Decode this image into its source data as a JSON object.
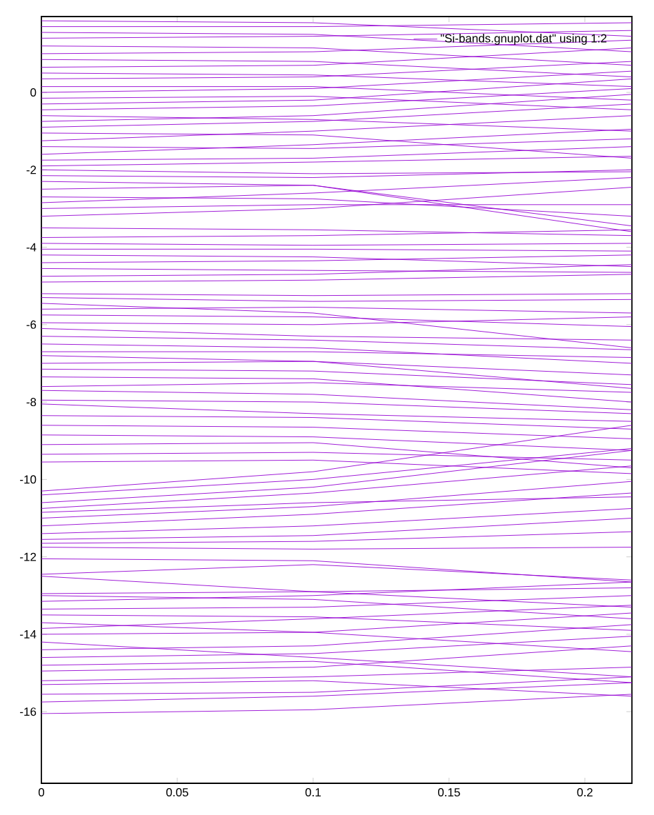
{
  "chart_data": {
    "type": "line",
    "xlim": [
      0,
      0.2173
    ],
    "ylim": [
      -17.85,
      1.96
    ],
    "xticks": [
      0,
      0.05,
      0.1,
      0.15,
      0.2
    ],
    "yticks": [
      -16,
      -14,
      -12,
      -10,
      -8,
      -6,
      -4,
      -2,
      0
    ],
    "legend": "top right",
    "line_style": "solid",
    "marker": "none",
    "series": [
      {
        "name": "\"Si-bands.gnuplot.dat\" using 1:2",
        "color": "#9400d3",
        "x": [
          0,
          0.1,
          0.2173,
          null,
          0,
          0.1,
          0.2173,
          null,
          0,
          0.1,
          0.2173,
          null,
          0,
          0.1,
          0.2173,
          null,
          0,
          0.1,
          0.2173,
          null,
          0,
          0.1,
          0.2173,
          null,
          0,
          0.1,
          0.2173,
          null,
          0,
          0.1,
          0.2173,
          null,
          0,
          0.1,
          0.2173,
          null,
          0,
          0.1,
          0.2173,
          null,
          0,
          0.1,
          0.2173,
          null,
          0,
          0.1,
          0.2173,
          null,
          0,
          0.1,
          0.2173,
          null,
          0,
          0.1,
          0.2173,
          null,
          0,
          0.1,
          0.2173,
          null,
          0,
          0.1,
          0.2173,
          null,
          0,
          0.1,
          0.2173,
          null,
          0,
          0.1,
          0.2173,
          null,
          0,
          0.1,
          0.2173,
          null,
          0,
          0.1,
          0.2173,
          null,
          0,
          0.1,
          0.2173,
          null,
          0,
          0.1,
          0.2173,
          null,
          0,
          0.1,
          0.2173,
          null,
          0,
          0.1,
          0.2173,
          null,
          0,
          0.1,
          0.2173,
          null,
          0,
          0.1,
          0.2173,
          null,
          0,
          0.1,
          0.2173,
          null,
          0,
          0.1,
          0.2173,
          null,
          0,
          0.1,
          0.2173,
          null,
          0,
          0.1,
          0.2173,
          null,
          0,
          0.1,
          0.2173,
          null,
          0,
          0.1,
          0.2173,
          null,
          0,
          0.1,
          0.2173,
          null,
          0,
          0.1,
          0.2173,
          null,
          0,
          0.1,
          0.2173,
          null,
          0,
          0.1,
          0.2173,
          null,
          0,
          0.1,
          0.2173,
          null,
          0,
          0.1,
          0.2173,
          null,
          0,
          0.1,
          0.2173,
          null,
          0,
          0.1,
          0.2173,
          null,
          0,
          0.1,
          0.2173,
          null,
          0,
          0.1,
          0.2173,
          null,
          0,
          0.1,
          0.2173,
          null,
          0,
          0.1,
          0.2173,
          null,
          0,
          0.1,
          0.2173,
          null,
          0,
          0.1,
          0.2173,
          null,
          0,
          0.1,
          0.2173,
          null,
          0,
          0.1,
          0.2173,
          null,
          0,
          0.1,
          0.2173,
          null,
          0,
          0.1,
          0.2173,
          null,
          0,
          0.1,
          0.2173,
          null,
          0,
          0.1,
          0.2173,
          null,
          0,
          0.1,
          0.2173,
          null,
          0,
          0.1,
          0.2173,
          null,
          0,
          0.1,
          0.2173,
          null,
          0,
          0.1,
          0.2173,
          null,
          0,
          0.1,
          0.2173,
          null,
          0,
          0.1,
          0.2173,
          null,
          0,
          0.1,
          0.2173,
          null,
          0,
          0.1,
          0.2173,
          null,
          0,
          0.1,
          0.2173,
          null,
          0,
          0.1,
          0.2173,
          null,
          0,
          0.1,
          0.2173,
          null,
          0,
          0.1,
          0.2173,
          null,
          0,
          0.1,
          0.2173,
          null,
          0,
          0.1,
          0.2173,
          null,
          0,
          0.1,
          0.2173,
          null,
          0,
          0.1,
          0.2173,
          null,
          0,
          0.1,
          0.2173,
          null,
          0,
          0.1,
          0.2173,
          null,
          0,
          0.1,
          0.2173,
          null,
          0,
          0.1,
          0.2173,
          null,
          0,
          0.1,
          0.2173,
          null,
          0,
          0.1,
          0.2173,
          null,
          0,
          0.1,
          0.2173,
          null,
          0,
          0.1,
          0.2173,
          null,
          0,
          0.1,
          0.2173,
          null,
          0,
          0.1,
          0.2173,
          null,
          0,
          0.1,
          0.2173,
          null,
          0,
          0.1,
          0.2173,
          null,
          0,
          0.1,
          0.2173,
          null,
          0,
          0.1,
          0.2173,
          null,
          0,
          0.1,
          0.2173,
          null,
          0,
          0.1,
          0.2173,
          null,
          0,
          0.1,
          0.2173,
          null,
          0,
          0.1,
          0.2173,
          null,
          0,
          0.1,
          0.2173,
          null,
          0,
          0.1,
          0.2173,
          null,
          0,
          0.1,
          0.2173,
          null,
          0,
          0.1,
          0.2173,
          null,
          0,
          0.1,
          0.2173,
          null,
          0,
          0.1,
          0.2173,
          null,
          0,
          0.1,
          0.2173,
          null,
          0,
          0.1,
          0.2173,
          null,
          0,
          0.1,
          0.2173,
          null,
          0,
          0.1,
          0.2173,
          null,
          0,
          0.1,
          0.2173
        ],
        "values": [
          -16.05,
          -15.95,
          -15.55,
          null,
          -15.75,
          -15.6,
          -15.25,
          null,
          -15.55,
          -15.5,
          -15.1,
          null,
          -15.3,
          -15.2,
          -15.6,
          null,
          -15.2,
          -15.1,
          -14.85,
          null,
          -14.95,
          -14.85,
          -14.3,
          null,
          -14.8,
          -14.7,
          -15.25,
          null,
          -14.6,
          -14.5,
          -14.05,
          null,
          -14.4,
          -14.3,
          -13.75,
          null,
          -14.2,
          -14.6,
          -15.1,
          null,
          -14.0,
          -13.95,
          -13.45,
          null,
          -13.85,
          -13.6,
          -13.25,
          null,
          -13.7,
          -13.95,
          -14.45,
          null,
          -13.5,
          -13.55,
          -13.9,
          null,
          -13.35,
          -13.3,
          -13.0,
          null,
          -13.15,
          -13.0,
          -12.65,
          null,
          -13.0,
          -13.1,
          -13.6,
          null,
          -12.95,
          -12.9,
          -12.8,
          null,
          -12.5,
          -12.9,
          -13.3,
          null,
          -12.45,
          -12.2,
          -12.6,
          null,
          -12.05,
          -12.1,
          -12.65,
          null,
          -11.75,
          -11.8,
          -11.75,
          null,
          -11.65,
          -11.6,
          -11.35,
          null,
          -11.55,
          -11.45,
          -11.0,
          null,
          -11.4,
          -11.2,
          -10.75,
          null,
          -11.2,
          -10.9,
          -10.35,
          null,
          -11.0,
          -10.7,
          -10.05,
          null,
          -10.85,
          -10.6,
          -10.45,
          null,
          -10.75,
          -10.35,
          -9.65,
          null,
          -10.6,
          -10.2,
          -9.25,
          null,
          -10.4,
          -10.0,
          -9.2,
          null,
          -10.3,
          -9.8,
          -8.6,
          null,
          -9.55,
          -9.5,
          -9.85,
          null,
          -9.35,
          -9.3,
          -9.5,
          null,
          -9.1,
          -9.05,
          -9.7,
          null,
          -8.85,
          -8.9,
          -9.25,
          null,
          -8.6,
          -8.65,
          -8.95,
          null,
          -8.35,
          -8.4,
          -8.7,
          null,
          -8.05,
          -8.3,
          -8.5,
          null,
          -7.95,
          -8.0,
          -8.3,
          null,
          -7.7,
          -7.8,
          -8.2,
          null,
          -7.6,
          -7.5,
          -7.75,
          null,
          -7.35,
          -7.4,
          -8.0,
          null,
          -7.15,
          -7.2,
          -7.55,
          null,
          -7.0,
          -6.95,
          -7.3,
          null,
          -6.8,
          -6.95,
          -7.65,
          null,
          -6.7,
          -6.7,
          -6.85,
          null,
          -6.5,
          -6.6,
          -7.0,
          null,
          -6.3,
          -6.4,
          -6.65,
          null,
          -6.1,
          -6.3,
          -6.4,
          null,
          -5.95,
          -6.0,
          -5.8,
          null,
          -5.75,
          -5.8,
          -6.05,
          null,
          -5.6,
          -5.55,
          -5.7,
          null,
          -5.45,
          -5.7,
          -6.6,
          null,
          -5.3,
          -5.4,
          -5.35,
          null,
          -5.2,
          -5.25,
          -5.2,
          null,
          -4.9,
          -4.85,
          -4.7,
          null,
          -4.75,
          -4.7,
          -4.45,
          null,
          -4.55,
          -4.6,
          -4.65,
          null,
          -4.4,
          -4.35,
          -4.2,
          null,
          -4.2,
          -4.25,
          -4.5,
          null,
          -4.05,
          -4.05,
          -4.1,
          null,
          -3.9,
          -3.95,
          -3.9,
          null,
          -3.75,
          -3.7,
          -3.55,
          null,
          -3.5,
          -3.55,
          -3.7,
          null,
          -3.2,
          -3.0,
          -2.45,
          null,
          -3.0,
          -2.9,
          -2.9,
          null,
          -2.85,
          -2.6,
          -2.2,
          null,
          -2.7,
          -2.75,
          -3.2,
          null,
          -2.5,
          -2.4,
          -3.45,
          null,
          -2.3,
          -2.4,
          -3.6,
          null,
          -2.15,
          -2.2,
          -2.0,
          null,
          -2.0,
          -2.1,
          -2.05,
          null,
          -1.9,
          -1.8,
          -1.65,
          null,
          -1.75,
          -1.7,
          -1.4,
          null,
          -1.6,
          -1.35,
          -0.95,
          null,
          -1.4,
          -1.45,
          -1.2,
          null,
          -1.25,
          -1.0,
          -0.6,
          null,
          -1.05,
          -1.1,
          -1.7,
          null,
          -0.9,
          -0.75,
          -0.3,
          null,
          -0.75,
          -0.6,
          -0.05,
          null,
          -0.6,
          -0.7,
          -1.0,
          null,
          -0.45,
          -0.35,
          0.1,
          null,
          -0.3,
          -0.2,
          0.35,
          null,
          -0.15,
          -0.1,
          -0.45,
          null,
          0.0,
          0.1,
          0.55,
          null,
          0.15,
          0.15,
          -0.2,
          null,
          0.35,
          0.4,
          0.8,
          null,
          0.5,
          0.45,
          0.15,
          null,
          0.65,
          0.7,
          1.15,
          null,
          0.85,
          0.8,
          0.4,
          null,
          1.0,
          1.05,
          1.35,
          null,
          1.2,
          1.15,
          0.7,
          null,
          1.4,
          1.45,
          1.6,
          null,
          1.55,
          1.5,
          1.05,
          null,
          1.7,
          1.7,
          1.8,
          null,
          1.85,
          1.8,
          1.45
        ]
      }
    ]
  }
}
